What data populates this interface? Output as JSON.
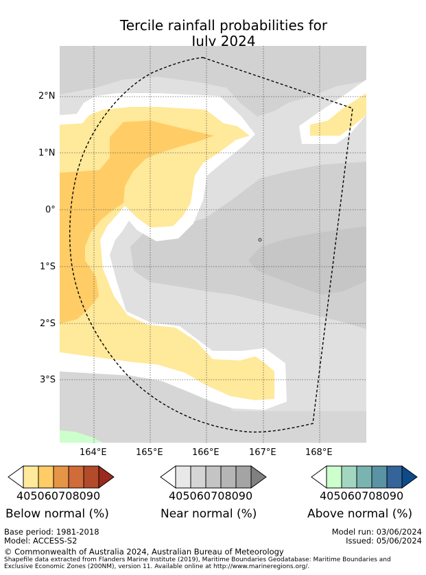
{
  "title": {
    "line1": "Tercile rainfall probabilities for",
    "line2": "July 2024"
  },
  "map": {
    "lat_labels": [
      "2°N",
      "1°N",
      "0°",
      "1°S",
      "2°S",
      "3°S"
    ],
    "lon_labels": [
      "164°E",
      "165°E",
      "166°E",
      "167°E",
      "168°E"
    ],
    "colors": {
      "ocean_base": "#e0e0e0",
      "near_low": "#d2d2d2",
      "near_mid": "#c4c4c4",
      "no_signal": "#ffffff",
      "below_40": "#ffe99a",
      "below_50": "#ffcc66",
      "below_60": "#e59546",
      "above_40": "#ccffcc"
    }
  },
  "legends": [
    {
      "id": "below",
      "caption": "Below normal (%)",
      "tick_labels": [
        "40",
        "50",
        "60",
        "70",
        "80",
        "90"
      ],
      "colors": [
        "#ffffff",
        "#ffe99a",
        "#ffcc66",
        "#e59546",
        "#d06b3a",
        "#b34a2a",
        "#9a2a1e"
      ]
    },
    {
      "id": "near",
      "caption": "Near normal (%)",
      "tick_labels": [
        "40",
        "50",
        "60",
        "70",
        "80",
        "90"
      ],
      "colors": [
        "#ffffff",
        "#e8e8e8",
        "#d5d5d5",
        "#c4c4c4",
        "#b5b5b5",
        "#a4a4a4",
        "#808080"
      ]
    },
    {
      "id": "above",
      "caption": "Above normal (%)",
      "tick_labels": [
        "40",
        "50",
        "60",
        "70",
        "80",
        "90"
      ],
      "colors": [
        "#ffffff",
        "#ccffcc",
        "#a2d6c0",
        "#7ab4b0",
        "#5a93a4",
        "#34649a",
        "#0d4a8a"
      ]
    }
  ],
  "footer": {
    "base_period": "Base period: 1981-2018",
    "model": "Model: ACCESS-S2",
    "model_run": "Model run: 03/06/2024",
    "issued": "Issued: 05/06/2024",
    "copyright": "© Commonwealth of Australia 2024, Australian Bureau of Meteorology",
    "shapefile_line1": "Shapefile data extracted from Flanders Marine Institute (2019), Maritime Boundaries Geodatabase: Maritime Boundaries and",
    "shapefile_line2": "Exclusive Economic Zones (200NM), version 11. Available online at http://www.marineregions.org/."
  }
}
